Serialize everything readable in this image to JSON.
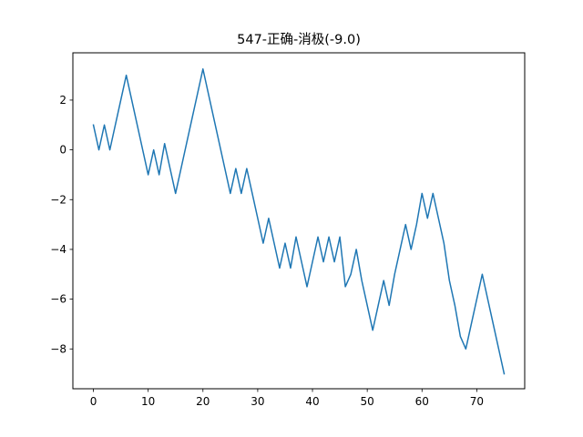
{
  "chart_data": {
    "type": "line",
    "title": "547-正确-消极(-9.0)",
    "xlabel": "",
    "ylabel": "",
    "xlim": [
      -3.75,
      78.75
    ],
    "ylim": [
      -9.6,
      3.9
    ],
    "xticks": [
      0,
      10,
      20,
      30,
      40,
      50,
      60,
      70
    ],
    "xtick_labels": [
      "0",
      "10",
      "20",
      "30",
      "40",
      "50",
      "60",
      "70"
    ],
    "yticks": [
      -8,
      -6,
      -4,
      -2,
      0,
      2
    ],
    "ytick_labels": [
      "−8",
      "−6",
      "−4",
      "−2",
      "0",
      "2"
    ],
    "grid": false,
    "series": [
      {
        "color": "#1f77b4",
        "x": [
          0,
          1,
          2,
          3,
          4,
          5,
          6,
          7,
          8,
          9,
          10,
          11,
          12,
          13,
          14,
          15,
          16,
          17,
          18,
          19,
          20,
          21,
          22,
          23,
          24,
          25,
          26,
          27,
          28,
          29,
          30,
          31,
          32,
          33,
          34,
          35,
          36,
          37,
          38,
          39,
          40,
          41,
          42,
          43,
          44,
          45,
          46,
          47,
          48,
          49,
          50,
          51,
          52,
          53,
          54,
          55,
          56,
          57,
          58,
          59,
          60,
          61,
          62,
          63,
          64,
          65,
          66,
          67,
          68,
          69,
          70,
          71,
          72,
          73,
          74,
          75
        ],
        "y": [
          1.0,
          0.0,
          1.0,
          0.0,
          1.0,
          2.0,
          3.0,
          2.0,
          1.0,
          0.0,
          -1.0,
          0.0,
          -1.0,
          0.25,
          -0.75,
          -1.75,
          -0.75,
          0.25,
          1.25,
          2.25,
          3.25,
          2.25,
          1.25,
          0.25,
          -0.75,
          -1.75,
          -0.75,
          -1.75,
          -0.75,
          -1.75,
          -2.75,
          -3.75,
          -2.75,
          -3.75,
          -4.75,
          -3.75,
          -4.75,
          -3.5,
          -4.5,
          -5.5,
          -4.5,
          -3.5,
          -4.5,
          -3.5,
          -4.5,
          -3.5,
          -5.5,
          -5.0,
          -4.0,
          -5.25,
          -6.25,
          -7.25,
          -6.25,
          -5.25,
          -6.25,
          -5.0,
          -4.0,
          -3.0,
          -4.0,
          -3.0,
          -1.75,
          -2.75,
          -1.75,
          -2.75,
          -3.75,
          -5.25,
          -6.25,
          -7.5,
          -8.0,
          -7.0,
          -6.0,
          -5.0,
          -6.0,
          -7.0,
          -8.0,
          -9.0
        ]
      }
    ]
  }
}
